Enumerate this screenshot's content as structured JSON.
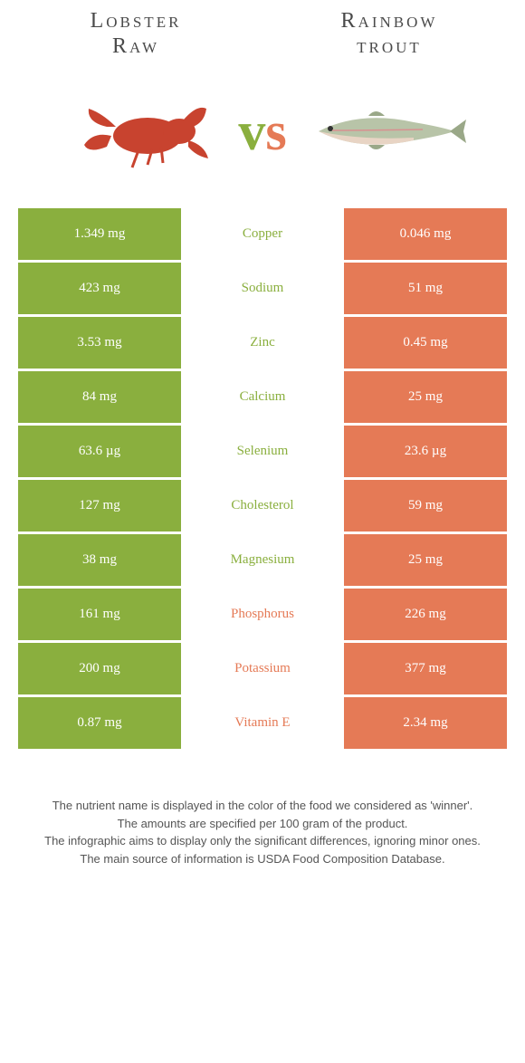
{
  "foods": {
    "left": {
      "name": "Lobster\nRaw",
      "color": "#8aaf3e"
    },
    "right": {
      "name": "Rainbow\ntrout",
      "color": "#e57a56"
    }
  },
  "vs": "vs",
  "rows": [
    {
      "nutrient": "Copper",
      "left": "1.349 mg",
      "right": "0.046 mg",
      "winner": "left"
    },
    {
      "nutrient": "Sodium",
      "left": "423 mg",
      "right": "51 mg",
      "winner": "left"
    },
    {
      "nutrient": "Zinc",
      "left": "3.53 mg",
      "right": "0.45 mg",
      "winner": "left"
    },
    {
      "nutrient": "Calcium",
      "left": "84 mg",
      "right": "25 mg",
      "winner": "left"
    },
    {
      "nutrient": "Selenium",
      "left": "63.6 µg",
      "right": "23.6 µg",
      "winner": "left"
    },
    {
      "nutrient": "Cholesterol",
      "left": "127 mg",
      "right": "59 mg",
      "winner": "left"
    },
    {
      "nutrient": "Magnesium",
      "left": "38 mg",
      "right": "25 mg",
      "winner": "left"
    },
    {
      "nutrient": "Phosphorus",
      "left": "161 mg",
      "right": "226 mg",
      "winner": "right"
    },
    {
      "nutrient": "Potassium",
      "left": "200 mg",
      "right": "377 mg",
      "winner": "right"
    },
    {
      "nutrient": "Vitamin E",
      "left": "0.87 mg",
      "right": "2.34 mg",
      "winner": "right"
    }
  ],
  "footer": {
    "line1": "The nutrient name is displayed in the color of the food we considered as 'winner'.",
    "line2": "The amounts are specified per 100 gram of the product.",
    "line3": "The infographic aims to display only the significant differences, ignoring minor ones.",
    "line4": "The main source of information is USDA Food Composition Database."
  }
}
